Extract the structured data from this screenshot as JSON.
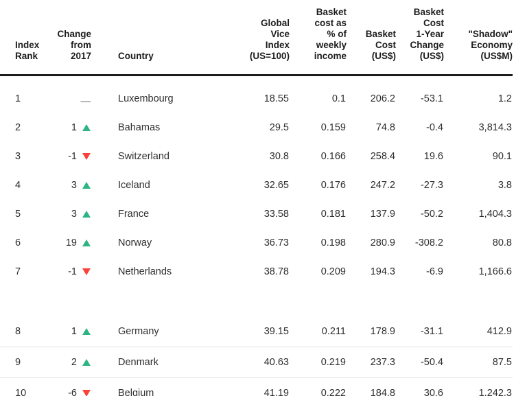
{
  "colors": {
    "up_triangle": "#2db482",
    "down_triangle": "#fa4238",
    "header_rule": "#1c1c1c",
    "row_separator": "#e0e0e0",
    "text": "#2e2e2e",
    "no_change_dash": "#6f6f6f"
  },
  "icons": {
    "up": "up-triangle",
    "down": "down-triangle",
    "no_change": "—"
  },
  "table": {
    "columns": [
      {
        "id": "rank",
        "label": "Index\nRank",
        "align": "left"
      },
      {
        "id": "change",
        "label": "Change\nfrom\n2017",
        "align": "right"
      },
      {
        "id": "country",
        "label": "Country",
        "align": "left"
      },
      {
        "id": "vice_index",
        "label": "Global\nVice\nIndex\n(US=100)",
        "align": "right"
      },
      {
        "id": "basket_pct",
        "label": "Basket\ncost as\n% of\nweekly\nincome",
        "align": "right"
      },
      {
        "id": "basket_cost",
        "label": "Basket\nCost\n(US$)",
        "align": "right"
      },
      {
        "id": "basket_change",
        "label": "Basket\nCost\n1-Year\nChange\n(US$)",
        "align": "right"
      },
      {
        "id": "shadow",
        "label": "\"Shadow\"\nEconomy\n(US$M)",
        "align": "right"
      }
    ],
    "rows": [
      {
        "rank": "1",
        "change": "",
        "direction": "none",
        "country": "Luxembourg",
        "vice_index": "18.55",
        "basket_pct": "0.1",
        "basket_cost": "206.2",
        "basket_change": "-53.1",
        "shadow": "1.2",
        "section": 1
      },
      {
        "rank": "2",
        "change": "1",
        "direction": "up",
        "country": "Bahamas",
        "vice_index": "29.5",
        "basket_pct": "0.159",
        "basket_cost": "74.8",
        "basket_change": "-0.4",
        "shadow": "3,814.3",
        "section": 1
      },
      {
        "rank": "3",
        "change": "-1",
        "direction": "down",
        "country": "Switzerland",
        "vice_index": "30.8",
        "basket_pct": "0.166",
        "basket_cost": "258.4",
        "basket_change": "19.6",
        "shadow": "90.1",
        "section": 1
      },
      {
        "rank": "4",
        "change": "3",
        "direction": "up",
        "country": "Iceland",
        "vice_index": "32.65",
        "basket_pct": "0.176",
        "basket_cost": "247.2",
        "basket_change": "-27.3",
        "shadow": "3.8",
        "section": 1
      },
      {
        "rank": "5",
        "change": "3",
        "direction": "up",
        "country": "France",
        "vice_index": "33.58",
        "basket_pct": "0.181",
        "basket_cost": "137.9",
        "basket_change": "-50.2",
        "shadow": "1,404.3",
        "section": 1
      },
      {
        "rank": "6",
        "change": "19",
        "direction": "up",
        "country": "Norway",
        "vice_index": "36.73",
        "basket_pct": "0.198",
        "basket_cost": "280.9",
        "basket_change": "-308.2",
        "shadow": "80.8",
        "section": 1
      },
      {
        "rank": "7",
        "change": "-1",
        "direction": "down",
        "country": "Netherlands",
        "vice_index": "38.78",
        "basket_pct": "0.209",
        "basket_cost": "194.3",
        "basket_change": "-6.9",
        "shadow": "1,166.6",
        "section": 1
      },
      {
        "rank": "8",
        "change": "1",
        "direction": "up",
        "country": "Germany",
        "vice_index": "39.15",
        "basket_pct": "0.211",
        "basket_cost": "178.9",
        "basket_change": "-31.1",
        "shadow": "412.9",
        "section": 2
      },
      {
        "rank": "9",
        "change": "2",
        "direction": "up",
        "country": "Denmark",
        "vice_index": "40.63",
        "basket_pct": "0.219",
        "basket_cost": "237.3",
        "basket_change": "-50.4",
        "shadow": "87.5",
        "section": 2
      },
      {
        "rank": "10",
        "change": "-6",
        "direction": "down",
        "country": "Belgium",
        "vice_index": "41.19",
        "basket_pct": "0.222",
        "basket_cost": "184.8",
        "basket_change": "30.6",
        "shadow": "1,242.3",
        "section": 2
      }
    ]
  }
}
